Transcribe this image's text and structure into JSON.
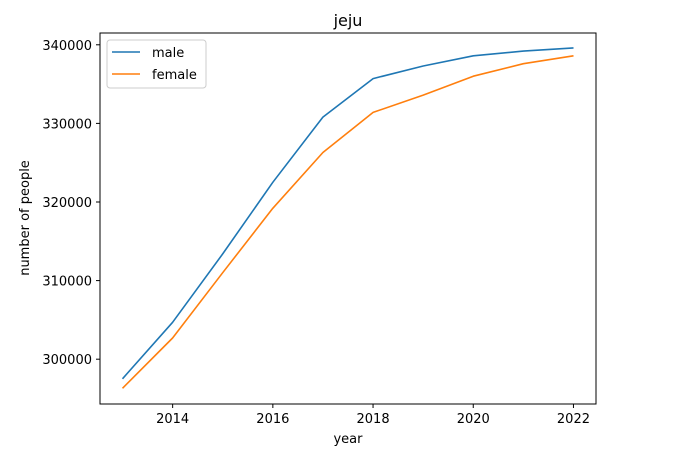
{
  "chart_data": {
    "type": "line",
    "title": "jeju",
    "xlabel": "year",
    "ylabel": "number of people",
    "x": [
      2013,
      2014,
      2015,
      2016,
      2017,
      2018,
      2019,
      2020,
      2021,
      2022
    ],
    "xlim": [
      2012.55,
      2022.45
    ],
    "ylim": [
      294300,
      341500
    ],
    "xticks": [
      2014,
      2016,
      2018,
      2020,
      2022
    ],
    "yticks": [
      300000,
      310000,
      320000,
      330000,
      340000
    ],
    "legend_position": "upper left",
    "grid": false,
    "series": [
      {
        "name": "male",
        "color": "#1f77b4",
        "values": [
          297500,
          304700,
          313400,
          322500,
          330800,
          335700,
          337300,
          338600,
          339200,
          339600
        ]
      },
      {
        "name": "female",
        "color": "#ff7f0e",
        "values": [
          296300,
          302700,
          311000,
          319200,
          326300,
          331400,
          333600,
          336000,
          337600,
          338600
        ]
      }
    ]
  }
}
